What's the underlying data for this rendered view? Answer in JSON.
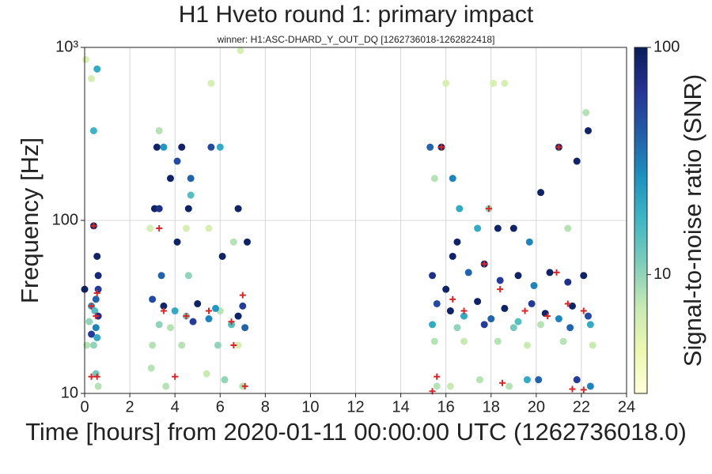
{
  "chart_data": {
    "type": "scatter",
    "title": "H1 Hveto round 1: primary impact",
    "subtitle": "winner: H1:ASC-DHARD_Y_OUT_DQ [1262736018-1262822418]",
    "xlabel": "Time [hours] from 2020-01-11 00:00:00 UTC (1262736018.0)",
    "ylabel": "Frequency [Hz]",
    "colorbar_label": "Signal-to-noise ratio (SNR)",
    "xlim": [
      0,
      24
    ],
    "xticks": [
      0,
      2,
      4,
      6,
      8,
      10,
      12,
      14,
      16,
      18,
      20,
      22,
      24
    ],
    "ylim": [
      10,
      1000
    ],
    "yticks": [
      10,
      100,
      {
        "value": 1000,
        "label": "10³"
      }
    ],
    "ylog": true,
    "grid": true,
    "clim": [
      3,
      100
    ],
    "cticks": [
      10,
      100
    ],
    "clog": true,
    "colormap": [
      "#ffffd9",
      "#edf8b1",
      "#c7e9b4",
      "#7fcdbb",
      "#41b6c4",
      "#1d91c0",
      "#225ea8",
      "#253494",
      "#081d58"
    ],
    "points": {
      "x": [
        0.05,
        0.3,
        0.55,
        0.4,
        0.4,
        0.55,
        0.6,
        0.6,
        0.5,
        0.3,
        0.45,
        0.6,
        0.2,
        0.5,
        0.3,
        0.55,
        0.1,
        0.4,
        0.5,
        0.6,
        0.0,
        2.9,
        3.1,
        3.3,
        3.2,
        3.5,
        3.3,
        3.8,
        4.1,
        4.3,
        4.1,
        4.6,
        4.7,
        4.7,
        4.6,
        4.5,
        5.5,
        5.6,
        6.0,
        5.6,
        6.9,
        6.8,
        6.1,
        7.2,
        6.6,
        3.4,
        3.0,
        3.5,
        4.0,
        4.5,
        5.0,
        5.5,
        6.0,
        6.5,
        7.0,
        3.3,
        3.8,
        4.8,
        5.8,
        6.8,
        7.1,
        3.0,
        4.3,
        5.9,
        6.8,
        2.95,
        3.6,
        5.4,
        6.2,
        7.0,
        15.3,
        15.8,
        15.5,
        16.3,
        16.6,
        17.9,
        18.1,
        18.6,
        16.0,
        16.5,
        17.4,
        18.3,
        19.0,
        19.7,
        20.2,
        21.0,
        21.8,
        22.3,
        22.2,
        21.4,
        15.4,
        16.0,
        16.3,
        17.0,
        17.7,
        18.4,
        19.2,
        19.9,
        20.6,
        21.4,
        22.1,
        15.6,
        16.2,
        16.8,
        17.4,
        18.0,
        18.6,
        19.2,
        19.8,
        20.4,
        21.0,
        21.6,
        22.3,
        15.4,
        16.5,
        17.7,
        19.0,
        20.2,
        21.5,
        22.4,
        15.5,
        16.8,
        18.3,
        19.6,
        21.2,
        22.5,
        15.6,
        16.2,
        17.5,
        18.8,
        19.6,
        20.1,
        21.8,
        22.4
      ],
      "y": [
        850,
        660,
        750,
        330,
        93,
        62,
        48,
        40,
        35,
        32,
        30,
        28,
        26,
        24,
        22,
        21,
        19,
        19,
        13,
        11,
        40,
        90,
        117,
        117,
        265,
        265,
        330,
        175,
        220,
        265,
        75,
        117,
        175,
        140,
        48,
        90,
        90,
        265,
        265,
        620,
        960,
        117,
        62,
        75,
        75,
        48,
        35,
        32,
        30,
        28,
        33,
        27,
        30,
        25,
        32,
        25,
        24,
        26,
        31,
        28,
        24,
        19,
        19,
        19,
        19,
        14,
        11,
        13,
        12,
        11,
        265,
        265,
        175,
        175,
        117,
        117,
        620,
        620,
        620,
        75,
        90,
        90,
        90,
        75,
        145,
        265,
        220,
        330,
        420,
        90,
        48,
        40,
        62,
        50,
        56,
        45,
        48,
        42,
        50,
        44,
        48,
        33,
        30,
        28,
        34,
        27,
        31,
        26,
        33,
        29,
        27,
        32,
        28,
        25,
        24,
        25,
        24,
        25,
        24,
        25,
        20,
        20,
        20,
        19,
        20,
        19,
        11,
        11,
        12,
        11,
        12,
        12,
        12,
        11
      ],
      "snr": [
        6,
        6,
        20,
        18,
        90,
        90,
        80,
        60,
        40,
        25,
        15,
        70,
        10,
        30,
        60,
        20,
        8,
        10,
        12,
        8,
        90,
        6,
        90,
        70,
        90,
        25,
        8,
        90,
        50,
        90,
        90,
        90,
        40,
        15,
        10,
        6,
        6,
        50,
        20,
        6,
        6,
        90,
        90,
        90,
        8,
        40,
        50,
        90,
        20,
        12,
        90,
        30,
        8,
        15,
        60,
        10,
        8,
        60,
        25,
        90,
        40,
        8,
        8,
        10,
        6,
        8,
        8,
        7,
        10,
        8,
        40,
        90,
        8,
        30,
        20,
        10,
        6,
        6,
        6,
        90,
        20,
        90,
        90,
        30,
        90,
        90,
        90,
        90,
        8,
        8,
        70,
        90,
        90,
        40,
        90,
        60,
        90,
        30,
        90,
        70,
        90,
        50,
        90,
        20,
        90,
        40,
        90,
        15,
        60,
        90,
        30,
        90,
        50,
        20,
        10,
        60,
        12,
        8,
        40,
        20,
        8,
        7,
        8,
        7,
        8,
        7,
        8,
        7,
        8,
        8,
        20,
        40,
        60,
        30
      ]
    },
    "vetoed": {
      "color": "#d62728",
      "x": [
        0.4,
        0.3,
        0.5,
        0.55,
        0.3,
        0.55,
        3.3,
        4.0,
        6.6,
        7.1,
        3.5,
        4.5,
        5.5,
        6.5,
        7.0,
        15.6,
        15.4,
        18.5,
        21.6,
        22.1,
        17.9,
        21.0,
        15.8,
        16.3,
        17.7,
        18.4,
        19.5,
        20.5,
        21.4,
        22.1,
        16.8,
        20.9
      ],
      "y": [
        93,
        32,
        28,
        38,
        12.5,
        12.5,
        90,
        12.5,
        19,
        11,
        30,
        28,
        30,
        26,
        37,
        12.5,
        10.3,
        11.5,
        10.6,
        10.5,
        117,
        265,
        265,
        35,
        56,
        40,
        30,
        28,
        33,
        30,
        30,
        50
      ]
    }
  }
}
